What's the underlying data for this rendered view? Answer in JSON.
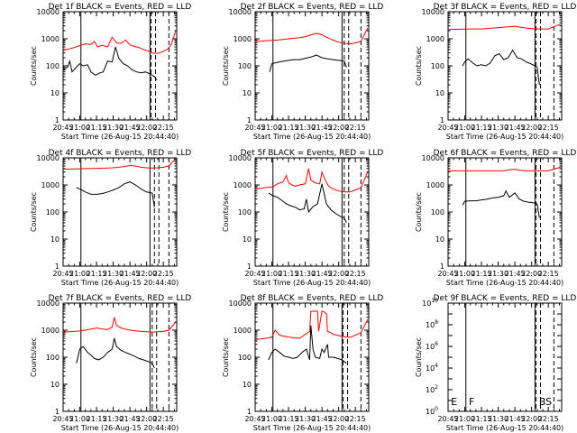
{
  "colors": {
    "background": "#ffffff",
    "axes": "#000000",
    "events": "#000000",
    "lld": "#ff0000"
  },
  "shared": {
    "xlabel": "Start Time (26-Aug-15 20:44:40)",
    "ylabel": "Counts/sec",
    "x_tick_labels": [
      "20:45",
      "21:00",
      "21:15",
      "21:30",
      "21:45",
      "22:00",
      "22:15"
    ],
    "x_ticks_minutes": [
      0,
      15,
      30,
      45,
      60,
      75,
      90
    ],
    "x_range_minutes": [
      -0.0,
      102
    ],
    "x_origin": "20:45"
  },
  "chart_data": [
    {
      "type": "line",
      "title": "Det 1f BLACK = Events, RED = LLD",
      "yscale": "log",
      "ylim": [
        1,
        10000
      ],
      "ytick_labels": [
        "1",
        "10",
        "100",
        "1000",
        "10000"
      ],
      "markers": {
        "solid": [
          16,
          78
        ],
        "dashed": [
          79,
          83,
          95
        ]
      },
      "series": [
        {
          "color": "red",
          "x": [
            0,
            5,
            10,
            15,
            20,
            25,
            28,
            31,
            35,
            40,
            44,
            48,
            52,
            56,
            60,
            64,
            68,
            72,
            76,
            80,
            83,
            86,
            90,
            94,
            97,
            101
          ],
          "y": [
            370,
            420,
            480,
            560,
            650,
            620,
            800,
            500,
            580,
            500,
            1150,
            700,
            680,
            900,
            600,
            520,
            480,
            400,
            360,
            300,
            290,
            300,
            340,
            420,
            600,
            1900
          ]
        },
        {
          "color": "black",
          "x": [
            0,
            2,
            4,
            6,
            8,
            12,
            15,
            18,
            22,
            25,
            29,
            33,
            36,
            40,
            44,
            47,
            50,
            54,
            58,
            62,
            66,
            70,
            74,
            78,
            82,
            84
          ],
          "y": [
            70,
            80,
            90,
            150,
            60,
            90,
            120,
            100,
            110,
            60,
            45,
            55,
            60,
            150,
            140,
            500,
            190,
            120,
            100,
            70,
            60,
            55,
            60,
            50,
            40,
            30
          ]
        }
      ]
    },
    {
      "type": "line",
      "title": "Det 2f BLACK = Events, RED = LLD",
      "yscale": "log",
      "ylim": [
        1,
        10000
      ],
      "ytick_labels": [
        "1",
        "10",
        "100",
        "1000",
        "10000"
      ],
      "markers": {
        "solid": [
          16,
          78
        ],
        "dashed": [
          80,
          84,
          95
        ]
      },
      "series": [
        {
          "color": "red",
          "x": [
            0,
            5,
            10,
            15,
            20,
            25,
            30,
            35,
            40,
            45,
            50,
            55,
            60,
            65,
            70,
            75,
            80,
            85,
            90,
            95,
            101
          ],
          "y": [
            800,
            820,
            850,
            880,
            900,
            950,
            1000,
            1050,
            1100,
            1200,
            1400,
            1600,
            1400,
            1100,
            900,
            750,
            680,
            650,
            700,
            800,
            2500
          ]
        },
        {
          "color": "black",
          "x": [
            13,
            15,
            18,
            22,
            26,
            30,
            35,
            40,
            45,
            50,
            55,
            60,
            65,
            70,
            75,
            80,
            82
          ],
          "y": [
            60,
            120,
            130,
            140,
            150,
            160,
            170,
            170,
            190,
            210,
            250,
            200,
            180,
            170,
            160,
            150,
            90
          ]
        }
      ]
    },
    {
      "type": "line",
      "title": "Det 3f BLACK = Events, RED = LLD",
      "yscale": "log",
      "ylim": [
        1,
        10000
      ],
      "ytick_labels": [
        "1",
        "10",
        "100",
        "1000",
        "10000"
      ],
      "markers": {
        "solid": [
          16,
          78
        ],
        "dashed": [
          79,
          83,
          95
        ]
      },
      "series": [
        {
          "color": "red",
          "x": [
            0,
            10,
            20,
            30,
            40,
            50,
            60,
            65,
            70,
            80,
            90,
            101
          ],
          "y": [
            2200,
            2250,
            2300,
            2300,
            2500,
            2700,
            2900,
            2700,
            2500,
            2300,
            2300,
            3500
          ]
        },
        {
          "color": "black",
          "x": [
            13,
            15,
            18,
            22,
            26,
            30,
            34,
            38,
            42,
            46,
            50,
            54,
            58,
            62,
            66,
            70,
            74,
            78,
            80,
            82
          ],
          "y": [
            100,
            140,
            180,
            130,
            100,
            110,
            100,
            130,
            240,
            280,
            170,
            200,
            380,
            200,
            180,
            140,
            120,
            100,
            90,
            20
          ]
        }
      ]
    },
    {
      "type": "line",
      "title": "Det 4f BLACK = Events, RED = LLD",
      "yscale": "log",
      "ylim": [
        1,
        10000
      ],
      "ytick_labels": [
        "1",
        "10",
        "100",
        "1000",
        "10000"
      ],
      "markers": {
        "solid": [
          16,
          78
        ],
        "dashed": [
          82,
          86,
          95
        ]
      },
      "series": [
        {
          "color": "red",
          "x": [
            0,
            10,
            20,
            30,
            40,
            45,
            55,
            60,
            65,
            70,
            75,
            80,
            85,
            90,
            95,
            101
          ],
          "y": [
            3800,
            3900,
            4000,
            4100,
            4200,
            4300,
            4800,
            5200,
            5000,
            4500,
            4300,
            4200,
            4300,
            4500,
            5000,
            9500
          ]
        },
        {
          "color": "black",
          "x": [
            12,
            15,
            20,
            25,
            30,
            35,
            40,
            45,
            50,
            55,
            60,
            65,
            70,
            75,
            80,
            82
          ],
          "y": [
            800,
            700,
            550,
            450,
            450,
            480,
            550,
            650,
            800,
            1100,
            1300,
            1000,
            700,
            550,
            500,
            150
          ]
        }
      ]
    },
    {
      "type": "line",
      "title": "Det 5f BLACK = Events, RED = LLD",
      "yscale": "log",
      "ylim": [
        1,
        10000
      ],
      "ytick_labels": [
        "1",
        "10",
        "100",
        "1000",
        "10000"
      ],
      "markers": {
        "solid": [
          16,
          78
        ],
        "dashed": [
          80,
          84,
          95
        ]
      },
      "series": [
        {
          "color": "red",
          "x": [
            0,
            5,
            10,
            16,
            20,
            25,
            28,
            30,
            33,
            36,
            40,
            45,
            48,
            50,
            54,
            58,
            60,
            63,
            66,
            70,
            75,
            80,
            85,
            90,
            95,
            101
          ],
          "y": [
            700,
            750,
            800,
            850,
            1100,
            1300,
            2200,
            1200,
            1000,
            900,
            1000,
            1100,
            4000,
            1500,
            1200,
            1100,
            3000,
            1500,
            900,
            700,
            600,
            550,
            550,
            650,
            800,
            3000
          ]
        },
        {
          "color": "black",
          "x": [
            12,
            16,
            20,
            25,
            28,
            32,
            36,
            40,
            44,
            46,
            48,
            52,
            56,
            60,
            64,
            68,
            72,
            76,
            80,
            82
          ],
          "y": [
            500,
            400,
            350,
            250,
            200,
            170,
            150,
            120,
            130,
            300,
            100,
            160,
            200,
            1100,
            200,
            120,
            90,
            70,
            60,
            40
          ]
        }
      ]
    },
    {
      "type": "line",
      "title": "Det 6f BLACK = Events, RED = LLD",
      "yscale": "log",
      "ylim": [
        1,
        10000
      ],
      "ytick_labels": [
        "1",
        "10",
        "100",
        "1000",
        "10000"
      ],
      "markers": {
        "solid": [
          16,
          78
        ],
        "dashed": [
          79,
          83,
          95
        ]
      },
      "series": [
        {
          "color": "red",
          "x": [
            0,
            10,
            20,
            30,
            40,
            50,
            55,
            60,
            65,
            70,
            80,
            90,
            101
          ],
          "y": [
            3300,
            3300,
            3300,
            3300,
            3300,
            3300,
            3600,
            3800,
            3500,
            3300,
            3300,
            3300,
            4500
          ]
        },
        {
          "color": "black",
          "x": [
            13,
            15,
            20,
            25,
            30,
            35,
            40,
            45,
            50,
            52,
            55,
            60,
            64,
            68,
            72,
            76,
            80,
            82
          ],
          "y": [
            180,
            250,
            260,
            260,
            280,
            300,
            330,
            350,
            400,
            600,
            350,
            500,
            300,
            250,
            230,
            220,
            200,
            60
          ]
        }
      ]
    },
    {
      "type": "line",
      "title": "Det 7f BLACK = Events, RED = LLD",
      "yscale": "log",
      "ylim": [
        1,
        10000
      ],
      "ytick_labels": [
        "1",
        "10",
        "100",
        "1000",
        "10000"
      ],
      "markers": {
        "solid": [
          16,
          78
        ],
        "dashed": [
          80,
          84,
          95
        ]
      },
      "series": [
        {
          "color": "red",
          "x": [
            0,
            5,
            10,
            15,
            20,
            25,
            30,
            35,
            40,
            44,
            46,
            48,
            52,
            56,
            60,
            65,
            70,
            75,
            80,
            85,
            90,
            95,
            101
          ],
          "y": [
            850,
            880,
            900,
            950,
            1000,
            1100,
            1200,
            1100,
            1050,
            1300,
            3000,
            1500,
            1200,
            1100,
            1000,
            950,
            900,
            880,
            850,
            870,
            900,
            1000,
            2000
          ]
        },
        {
          "color": "black",
          "x": [
            12,
            15,
            18,
            22,
            25,
            28,
            32,
            36,
            40,
            44,
            46,
            48,
            52,
            56,
            60,
            64,
            68,
            72,
            76,
            80,
            82
          ],
          "y": [
            60,
            200,
            250,
            150,
            120,
            90,
            80,
            100,
            150,
            200,
            500,
            250,
            180,
            150,
            130,
            110,
            90,
            80,
            70,
            60,
            40
          ]
        }
      ]
    },
    {
      "type": "line",
      "title": "Det 8f BLACK = Events, RED = LLD",
      "yscale": "log",
      "ylim": [
        1,
        10000
      ],
      "ytick_labels": [
        "1",
        "10",
        "100",
        "1000",
        "10000"
      ],
      "markers": {
        "solid": [
          16,
          78
        ],
        "dashed": [
          79,
          83,
          95
        ]
      },
      "series": [
        {
          "color": "red",
          "x": [
            0,
            5,
            10,
            15,
            18,
            22,
            26,
            30,
            35,
            40,
            45,
            49,
            50,
            52,
            54,
            56,
            57,
            60,
            61,
            64,
            65,
            68,
            70,
            74,
            78,
            82,
            86,
            90,
            95,
            101
          ],
          "y": [
            450,
            470,
            500,
            550,
            1000,
            650,
            600,
            560,
            520,
            500,
            700,
            900,
            5000,
            5000,
            5000,
            5000,
            900,
            5000,
            5000,
            4000,
            900,
            800,
            700,
            650,
            600,
            550,
            550,
            650,
            800,
            2500
          ]
        },
        {
          "color": "black",
          "x": [
            12,
            15,
            18,
            22,
            26,
            30,
            34,
            38,
            42,
            46,
            49,
            50,
            52,
            54,
            58,
            60,
            62,
            65,
            66,
            70,
            74,
            78,
            82
          ],
          "y": [
            80,
            150,
            200,
            150,
            110,
            100,
            90,
            100,
            150,
            200,
            80,
            1500,
            200,
            100,
            90,
            200,
            150,
            300,
            100,
            100,
            90,
            80,
            60
          ]
        }
      ]
    },
    {
      "type": "line",
      "title": "Det 9f BLACK = Events, RED = LLD",
      "yscale": "log",
      "ylim": [
        1,
        10000000000
      ],
      "ytick_labels": [
        [
          "10",
          "0"
        ],
        [
          "10",
          "2"
        ],
        [
          "10",
          "4"
        ],
        [
          "10",
          "6"
        ],
        [
          "10",
          "8"
        ],
        [
          "10",
          "10"
        ]
      ],
      "markers": {
        "solid": [
          16,
          78
        ],
        "dashed": [
          79,
          83,
          95
        ]
      },
      "annotations": [
        {
          "text": "E",
          "x": 1,
          "y": 4
        },
        {
          "text": "F",
          "x": 17,
          "y": 4
        },
        {
          "text": "BS",
          "x": 80,
          "y": 4
        }
      ],
      "series": []
    }
  ]
}
